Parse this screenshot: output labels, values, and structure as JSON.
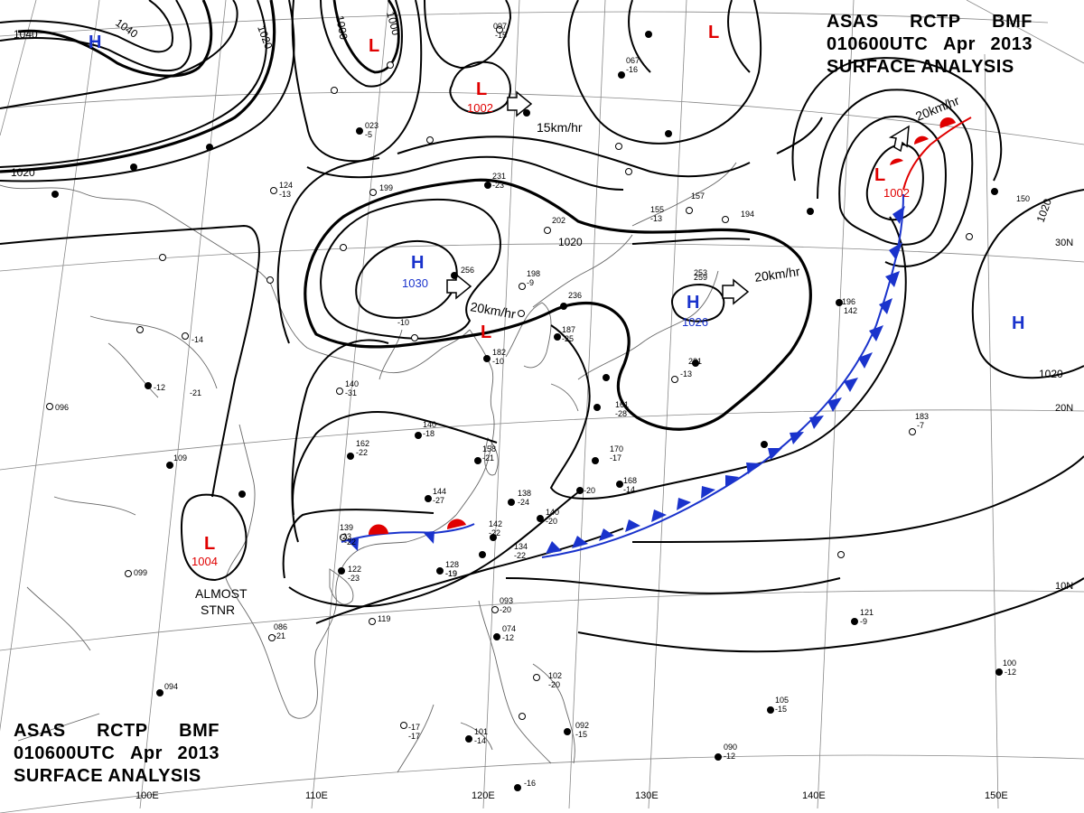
{
  "header": {
    "agency": [
      "ASAS",
      "RCTP",
      "BMF"
    ],
    "time": [
      "010600UTC",
      "Apr",
      "2013"
    ],
    "product": "SURFACE ANALYSIS"
  },
  "grid": {
    "lon_labels": [
      "100E",
      "110E",
      "120E",
      "130E",
      "140E",
      "150E"
    ],
    "lat_labels": [
      "30N",
      "20N",
      "10N"
    ]
  },
  "isobars": {
    "labels": [
      "1040",
      "1040",
      "1020",
      "1000",
      "1000",
      "1020",
      "1020",
      "1020",
      "1020"
    ]
  },
  "pressure_centers": [
    {
      "type": "H",
      "value": "",
      "color": "#1a33cc"
    },
    {
      "type": "L",
      "value": "",
      "color": "#e00000"
    },
    {
      "type": "L",
      "value": "1002",
      "color": "#e00000"
    },
    {
      "type": "L",
      "value": "",
      "color": "#e00000"
    },
    {
      "type": "L",
      "value": "1002",
      "color": "#e00000"
    },
    {
      "type": "H",
      "value": "1030",
      "color": "#1a33cc"
    },
    {
      "type": "H",
      "value": "1026",
      "color": "#1a33cc"
    },
    {
      "type": "L",
      "value": "",
      "color": "#e00000"
    },
    {
      "type": "H",
      "value": "",
      "color": "#1a33cc"
    },
    {
      "type": "L",
      "value": "1004",
      "color": "#e00000"
    }
  ],
  "movements": [
    "15km/hr",
    "20km/hr",
    "20km/hr",
    "20km/hr"
  ],
  "notes": [
    "ALMOST",
    "STNR"
  ],
  "station_labels": [
    "097",
    "-15",
    "067",
    "-16",
    "023",
    "-5",
    "199",
    "231",
    "-23",
    "202",
    "256",
    "198",
    "-9",
    "236",
    "187",
    "-25",
    "182",
    "-10",
    "140",
    "-31",
    "140",
    "-18",
    "162",
    "-22",
    "158",
    "-21",
    "170",
    "-17",
    "144",
    "-27",
    "139",
    "-23",
    "142",
    "-22",
    "138",
    "-24",
    "140",
    "-20",
    "134",
    "-22",
    "128",
    "-19",
    "122",
    "-23",
    "119",
    "093",
    "-20",
    "074",
    "-12",
    "102",
    "-20",
    "092",
    "-15",
    "101",
    "-14",
    "-16",
    "-17",
    "086",
    "-21",
    "094",
    "099",
    "109",
    "096",
    "-12",
    "-21",
    "-14",
    "253",
    "124",
    "-13",
    "157",
    "155",
    "-13",
    "194",
    "259",
    "221",
    "-13",
    "196",
    "142",
    "183",
    "-7",
    "105",
    "-15",
    "090",
    "-12",
    "100",
    "-12",
    "121",
    "-9",
    "150",
    "168",
    "-14",
    "161",
    "-28",
    "-20",
    "-22",
    "-10",
    "-17",
    "-19"
  ]
}
